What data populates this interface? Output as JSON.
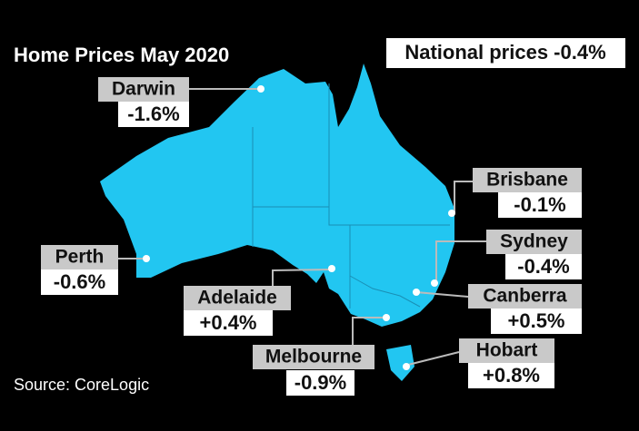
{
  "header": {
    "title": "Home Prices May 2020",
    "national": "National prices -0.4%"
  },
  "cities": [
    {
      "name": "Darwin",
      "change": "-1.6%"
    },
    {
      "name": "Brisbane",
      "change": "-0.1%"
    },
    {
      "name": "Sydney",
      "change": "-0.4%"
    },
    {
      "name": "Canberra",
      "change": "+0.5%"
    },
    {
      "name": "Hobart",
      "change": "+0.8%"
    },
    {
      "name": "Melbourne",
      "change": "-0.9%"
    },
    {
      "name": "Adelaide",
      "change": "+0.4%"
    },
    {
      "name": "Perth",
      "change": "-0.6%"
    }
  ],
  "footer": {
    "source": "Source: CoreLogic"
  }
}
